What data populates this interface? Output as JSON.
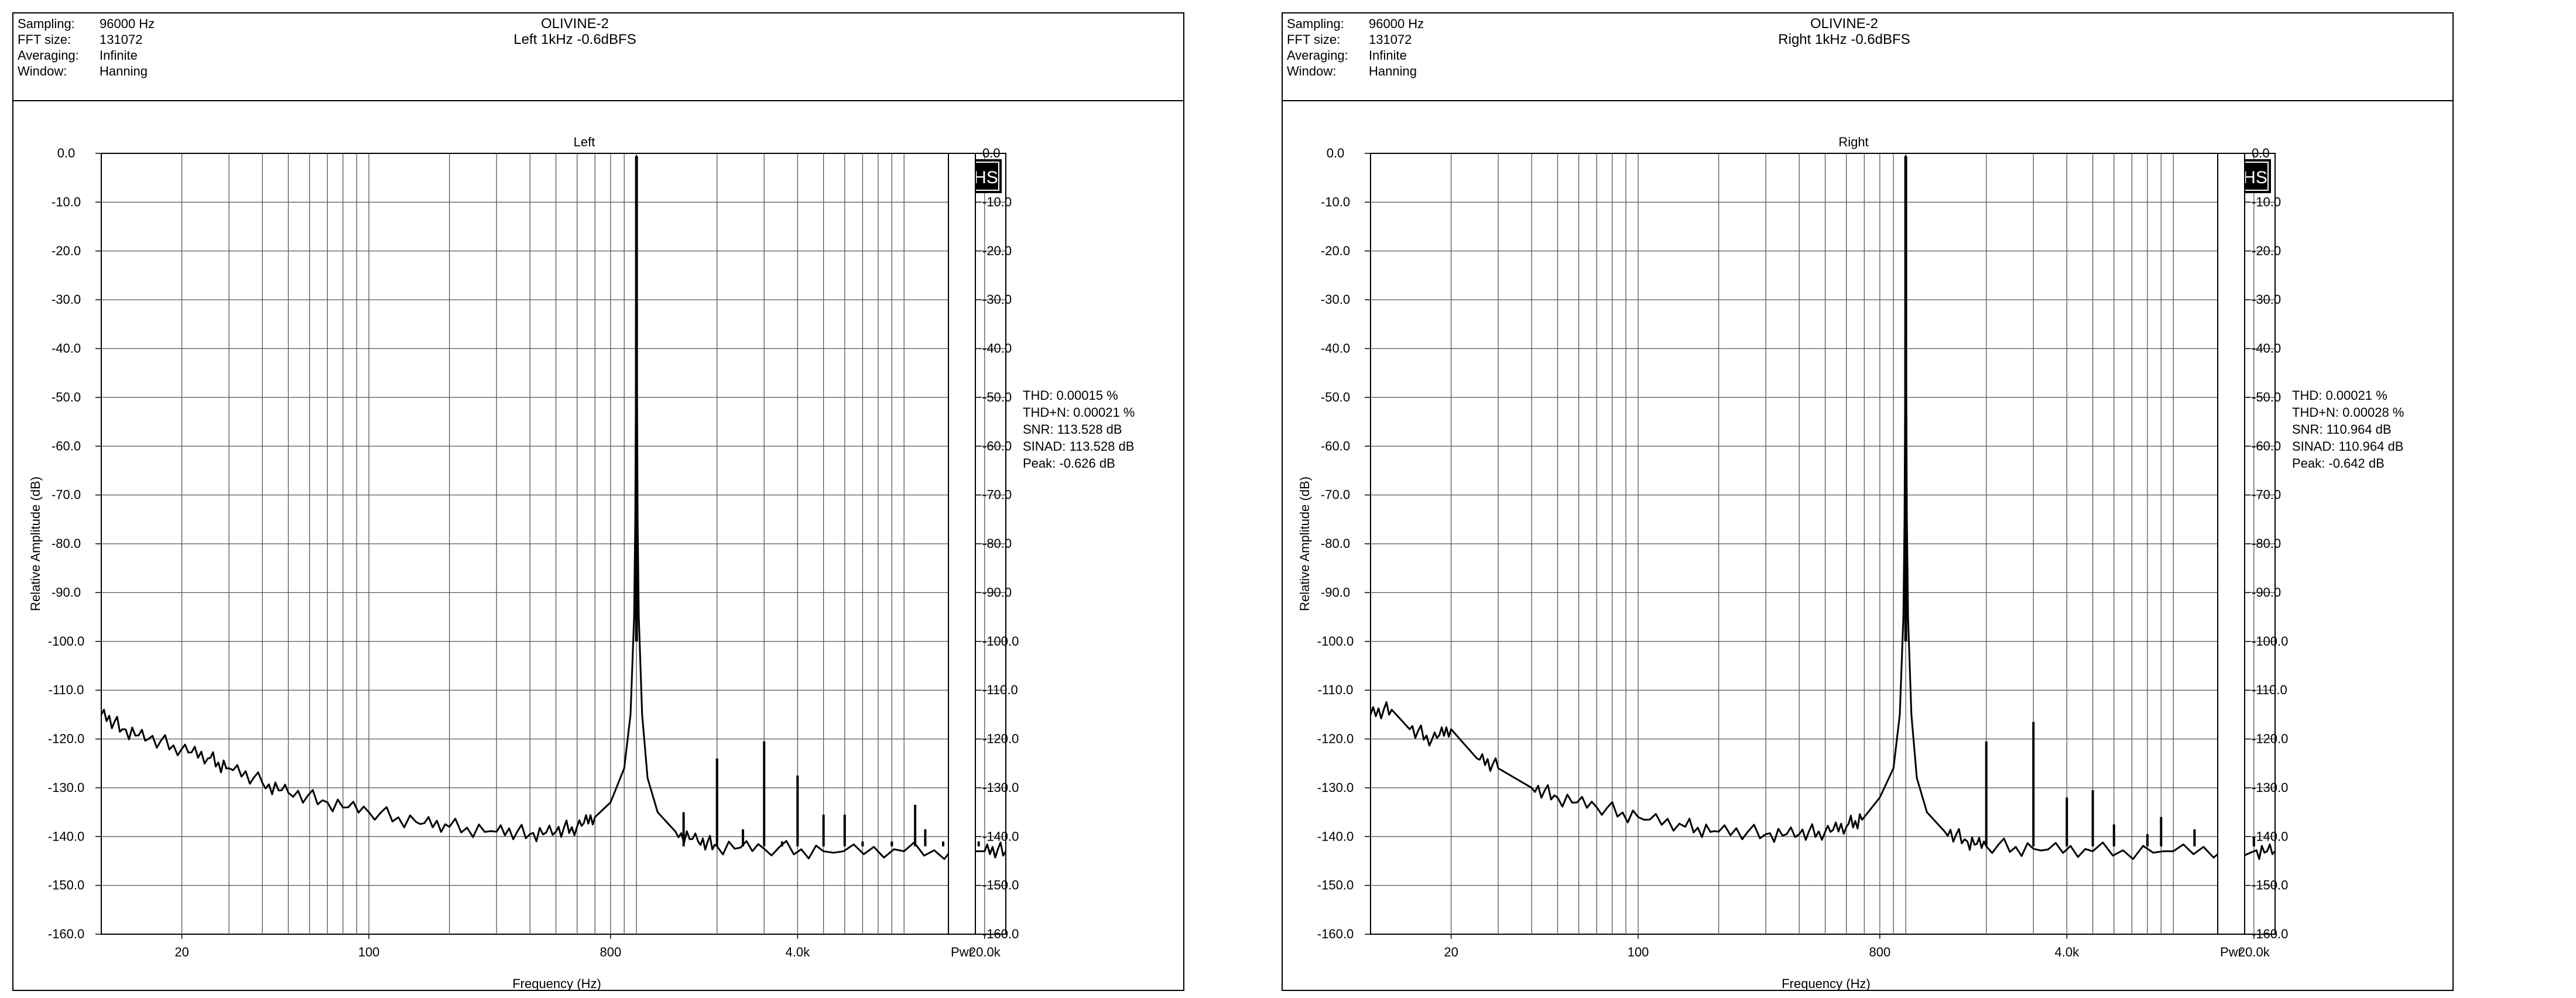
{
  "panels": [
    {
      "header": {
        "fields": [
          {
            "label": "Sampling:",
            "value": "96000 Hz"
          },
          {
            "label": "FFT size:",
            "value": "131072"
          },
          {
            "label": "Averaging:",
            "value": "Infinite"
          },
          {
            "label": "Window:",
            "value": "Hanning"
          }
        ],
        "title": "OLIVINE-2",
        "subtitle": "Left 1kHz -0.6dBFS"
      },
      "logo": "PHS",
      "pwr_label": "Pwr",
      "stats": [
        "THD: 0.00015 %",
        "THD+N: 0.00021 %",
        "SNR: 113.528 dB",
        "SINAD: 113.528 dB",
        "Peak: -0.626 dB"
      ]
    },
    {
      "header": {
        "fields": [
          {
            "label": "Sampling:",
            "value": "96000 Hz"
          },
          {
            "label": "FFT size:",
            "value": "131072"
          },
          {
            "label": "Averaging:",
            "value": "Infinite"
          },
          {
            "label": "Window:",
            "value": "Hanning"
          }
        ],
        "title": "OLIVINE-2",
        "subtitle": "Right 1kHz -0.6dBFS"
      },
      "logo": "PHS",
      "pwr_label": "Pwr",
      "stats": [
        "THD: 0.00021 %",
        "THD+N: 0.00028 %",
        "SNR: 110.964 dB",
        "SINAD: 110.964 dB",
        "Peak: -0.642 dB"
      ]
    }
  ],
  "chart_data": [
    {
      "type": "line",
      "title": "Left",
      "xlabel": "Frequency (Hz)",
      "ylabel": "Relative Amplitude (dB)",
      "x_scale": "log",
      "xlim": [
        10,
        24000
      ],
      "ylim": [
        -160,
        0
      ],
      "grid": true,
      "x_ticks": [
        {
          "value": 20,
          "label": "20"
        },
        {
          "value": 100,
          "label": "100"
        },
        {
          "value": 800,
          "label": "800"
        },
        {
          "value": 4000,
          "label": "4.0k"
        },
        {
          "value": 20000,
          "label": "20.0k"
        }
      ],
      "y_ticks": [
        "0.0",
        "-10.0",
        "-20.0",
        "-30.0",
        "-40.0",
        "-50.0",
        "-60.0",
        "-70.0",
        "-80.0",
        "-90.0",
        "-100.0",
        "-110.0",
        "-120.0",
        "-130.0",
        "-140.0",
        "-150.0",
        "-160.0"
      ],
      "fundamental": {
        "freq": 1000,
        "level": -0.6
      },
      "noise_floor": [
        [
          10,
          -115
        ],
        [
          12,
          -118
        ],
        [
          15,
          -120
        ],
        [
          20,
          -122
        ],
        [
          25,
          -124
        ],
        [
          30,
          -126
        ],
        [
          40,
          -129
        ],
        [
          50,
          -131
        ],
        [
          70,
          -133
        ],
        [
          100,
          -135
        ],
        [
          150,
          -137
        ],
        [
          200,
          -138
        ],
        [
          300,
          -139
        ],
        [
          400,
          -139.5
        ],
        [
          500,
          -139
        ],
        [
          600,
          -138
        ],
        [
          700,
          -136
        ],
        [
          800,
          -133
        ],
        [
          900,
          -126
        ],
        [
          950,
          -115
        ],
        [
          980,
          -95
        ],
        [
          990,
          -75
        ],
        [
          995,
          -50
        ],
        [
          1000,
          -0.6
        ],
        [
          1005,
          -50
        ],
        [
          1010,
          -75
        ],
        [
          1020,
          -95
        ],
        [
          1050,
          -115
        ],
        [
          1100,
          -128
        ],
        [
          1200,
          -135
        ],
        [
          1400,
          -139
        ],
        [
          1700,
          -141
        ],
        [
          2000,
          -142
        ],
        [
          3000,
          -142.5
        ],
        [
          5000,
          -143
        ],
        [
          10000,
          -143
        ],
        [
          20000,
          -143
        ],
        [
          24000,
          -143
        ]
      ],
      "harmonics": [
        [
          1500,
          -135
        ],
        [
          2000,
          -124
        ],
        [
          2500,
          -138.5
        ],
        [
          3000,
          -120.5
        ],
        [
          3500,
          -141
        ],
        [
          4000,
          -127.5
        ],
        [
          5000,
          -135.5
        ],
        [
          6000,
          -135.5
        ],
        [
          7000,
          -141
        ],
        [
          9000,
          -141
        ],
        [
          11000,
          -133.5
        ],
        [
          12000,
          -138.5
        ],
        [
          14000,
          -141
        ],
        [
          15000,
          -140
        ],
        [
          16000,
          -137.5
        ],
        [
          17000,
          -140.5
        ],
        [
          18000,
          -139
        ],
        [
          19000,
          -141
        ]
      ]
    },
    {
      "type": "line",
      "title": "Right",
      "xlabel": "Frequency (Hz)",
      "ylabel": "Relative Amplitude (dB)",
      "x_scale": "log",
      "xlim": [
        10,
        24000
      ],
      "ylim": [
        -160,
        0
      ],
      "grid": true,
      "x_ticks": [
        {
          "value": 20,
          "label": "20"
        },
        {
          "value": 100,
          "label": "100"
        },
        {
          "value": 800,
          "label": "800"
        },
        {
          "value": 4000,
          "label": "4.0k"
        },
        {
          "value": 20000,
          "label": "20.0k"
        }
      ],
      "y_ticks": [
        "0.0",
        "-10.0",
        "-20.0",
        "-30.0",
        "-40.0",
        "-50.0",
        "-60.0",
        "-70.0",
        "-80.0",
        "-90.0",
        "-100.0",
        "-110.0",
        "-120.0",
        "-130.0",
        "-140.0",
        "-150.0",
        "-160.0"
      ],
      "fundamental": {
        "freq": 1000,
        "level": -0.6
      },
      "noise_floor": [
        [
          10,
          -115
        ],
        [
          12,
          -114
        ],
        [
          14,
          -118
        ],
        [
          17,
          -120
        ],
        [
          20,
          -118
        ],
        [
          25,
          -124
        ],
        [
          30,
          -126
        ],
        [
          40,
          -130
        ],
        [
          50,
          -132
        ],
        [
          70,
          -134
        ],
        [
          100,
          -136
        ],
        [
          150,
          -138
        ],
        [
          200,
          -139
        ],
        [
          300,
          -139.5
        ],
        [
          400,
          -139.5
        ],
        [
          500,
          -139
        ],
        [
          600,
          -138
        ],
        [
          700,
          -136
        ],
        [
          800,
          -132
        ],
        [
          900,
          -126
        ],
        [
          950,
          -115
        ],
        [
          980,
          -95
        ],
        [
          990,
          -75
        ],
        [
          995,
          -50
        ],
        [
          1000,
          -0.6
        ],
        [
          1005,
          -50
        ],
        [
          1010,
          -75
        ],
        [
          1020,
          -95
        ],
        [
          1050,
          -115
        ],
        [
          1100,
          -128
        ],
        [
          1200,
          -135
        ],
        [
          1400,
          -139
        ],
        [
          1700,
          -141
        ],
        [
          2000,
          -142
        ],
        [
          3000,
          -142.5
        ],
        [
          5000,
          -143
        ],
        [
          10000,
          -143
        ],
        [
          20000,
          -143
        ],
        [
          24000,
          -143
        ]
      ],
      "harmonics": [
        [
          2000,
          -120.5
        ],
        [
          3000,
          -116.5
        ],
        [
          4000,
          -132
        ],
        [
          5000,
          -130.5
        ],
        [
          6000,
          -137.5
        ],
        [
          8000,
          -139.5
        ],
        [
          9000,
          -136
        ],
        [
          12000,
          -138.5
        ],
        [
          20000,
          -140
        ]
      ]
    }
  ]
}
